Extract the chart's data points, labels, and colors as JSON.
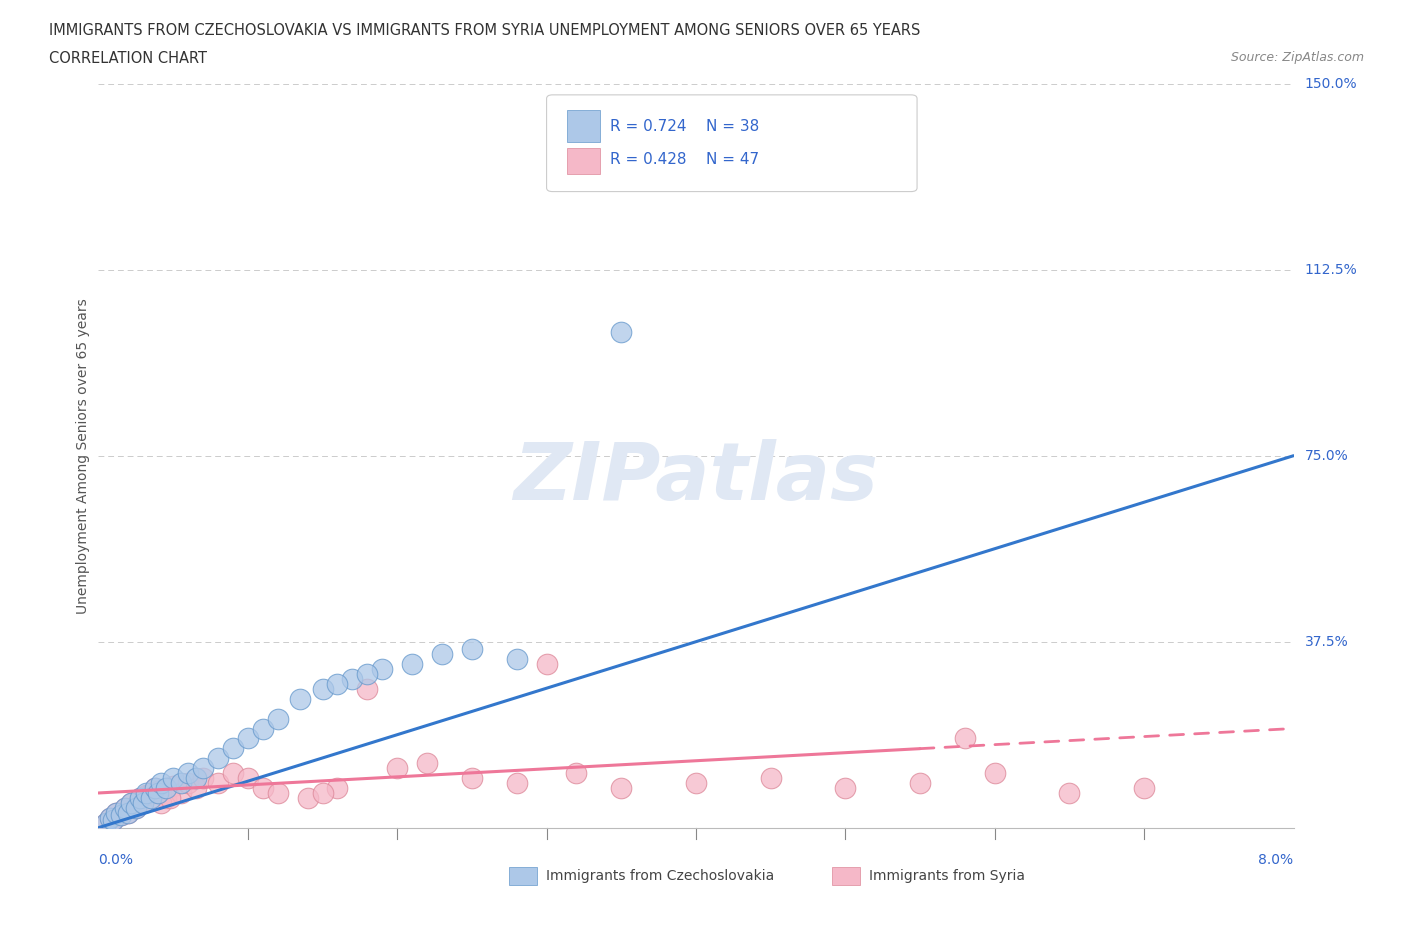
{
  "title_line1": "IMMIGRANTS FROM CZECHOSLOVAKIA VS IMMIGRANTS FROM SYRIA UNEMPLOYMENT AMONG SENIORS OVER 65 YEARS",
  "title_line2": "CORRELATION CHART",
  "source": "Source: ZipAtlas.com",
  "ylabel": "Unemployment Among Seniors over 65 years",
  "xlim": [
    0.0,
    8.0
  ],
  "ylim": [
    0.0,
    150.0
  ],
  "yticks": [
    0.0,
    37.5,
    75.0,
    112.5,
    150.0
  ],
  "grid_color": "#cccccc",
  "background_color": "#ffffff",
  "czech_color": "#adc8e8",
  "czech_edge_color": "#6699cc",
  "syria_color": "#f5b8c8",
  "syria_edge_color": "#dd8899",
  "czech_R": 0.724,
  "czech_N": 38,
  "syria_R": 0.428,
  "syria_N": 47,
  "legend_R_color": "#3366cc",
  "czech_line_color": "#3377cc",
  "syria_line_color": "#ee7799",
  "watermark_color": "#e0e8f4"
}
